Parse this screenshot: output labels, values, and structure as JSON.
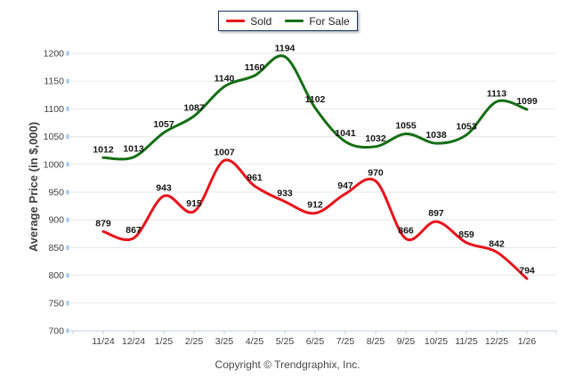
{
  "legend": {
    "items": [
      {
        "label": "Sold",
        "color": "#e8131a"
      },
      {
        "label": "For Sale",
        "color": "#146e14"
      }
    ]
  },
  "chart_data": {
    "type": "line",
    "title": "",
    "ylabel": "Average Price (in $,000)",
    "xlabel": "",
    "categories": [
      "11/24",
      "12/24",
      "1/25",
      "2/25",
      "3/25",
      "4/25",
      "5/25",
      "6/25",
      "7/25",
      "8/25",
      "9/25",
      "10/25",
      "11/25",
      "12/25",
      "1/26"
    ],
    "series": [
      {
        "name": "Sold",
        "color": "#e8131a",
        "values": [
          879,
          867,
          943,
          915,
          1007,
          961,
          933,
          912,
          947,
          970,
          866,
          897,
          859,
          842,
          794
        ]
      },
      {
        "name": "For Sale",
        "color": "#146e14",
        "values": [
          1012,
          1013,
          1057,
          1087,
          1140,
          1160,
          1194,
          1102,
          1041,
          1032,
          1055,
          1038,
          1053,
          1113,
          1099
        ]
      }
    ],
    "ylim": [
      700,
      1200
    ],
    "ytick_step": 50,
    "grid": "horizontal-only",
    "legend_position": "top-center",
    "show_point_labels": true,
    "curve": "smooth"
  },
  "footer": {
    "copyright": "Copyright © Trendgraphix, Inc."
  },
  "colors": {
    "grid": "#e7e7e7",
    "axis": "#c5d0de",
    "y_axis_tick": "#9ec7f0",
    "tick_label": "#3f3f3f",
    "axis_title": "#3f3f3f",
    "point_label": "#151515",
    "copyright": "#4a4a4a"
  }
}
